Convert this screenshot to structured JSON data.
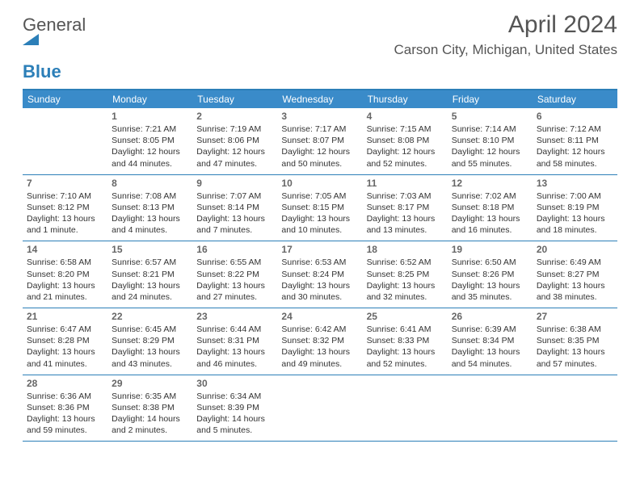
{
  "logo": {
    "general": "General",
    "blue": "Blue"
  },
  "title": "April 2024",
  "location": "Carson City, Michigan, United States",
  "colors": {
    "header_bg": "#3a8bc9",
    "rule": "#2c7fb8",
    "text": "#333333",
    "muted": "#555555"
  },
  "day_names": [
    "Sunday",
    "Monday",
    "Tuesday",
    "Wednesday",
    "Thursday",
    "Friday",
    "Saturday"
  ],
  "weeks": [
    [
      null,
      {
        "n": "1",
        "sunrise": "7:21 AM",
        "sunset": "8:05 PM",
        "daylight": "12 hours and 44 minutes."
      },
      {
        "n": "2",
        "sunrise": "7:19 AM",
        "sunset": "8:06 PM",
        "daylight": "12 hours and 47 minutes."
      },
      {
        "n": "3",
        "sunrise": "7:17 AM",
        "sunset": "8:07 PM",
        "daylight": "12 hours and 50 minutes."
      },
      {
        "n": "4",
        "sunrise": "7:15 AM",
        "sunset": "8:08 PM",
        "daylight": "12 hours and 52 minutes."
      },
      {
        "n": "5",
        "sunrise": "7:14 AM",
        "sunset": "8:10 PM",
        "daylight": "12 hours and 55 minutes."
      },
      {
        "n": "6",
        "sunrise": "7:12 AM",
        "sunset": "8:11 PM",
        "daylight": "12 hours and 58 minutes."
      }
    ],
    [
      {
        "n": "7",
        "sunrise": "7:10 AM",
        "sunset": "8:12 PM",
        "daylight": "13 hours and 1 minute."
      },
      {
        "n": "8",
        "sunrise": "7:08 AM",
        "sunset": "8:13 PM",
        "daylight": "13 hours and 4 minutes."
      },
      {
        "n": "9",
        "sunrise": "7:07 AM",
        "sunset": "8:14 PM",
        "daylight": "13 hours and 7 minutes."
      },
      {
        "n": "10",
        "sunrise": "7:05 AM",
        "sunset": "8:15 PM",
        "daylight": "13 hours and 10 minutes."
      },
      {
        "n": "11",
        "sunrise": "7:03 AM",
        "sunset": "8:17 PM",
        "daylight": "13 hours and 13 minutes."
      },
      {
        "n": "12",
        "sunrise": "7:02 AM",
        "sunset": "8:18 PM",
        "daylight": "13 hours and 16 minutes."
      },
      {
        "n": "13",
        "sunrise": "7:00 AM",
        "sunset": "8:19 PM",
        "daylight": "13 hours and 18 minutes."
      }
    ],
    [
      {
        "n": "14",
        "sunrise": "6:58 AM",
        "sunset": "8:20 PM",
        "daylight": "13 hours and 21 minutes."
      },
      {
        "n": "15",
        "sunrise": "6:57 AM",
        "sunset": "8:21 PM",
        "daylight": "13 hours and 24 minutes."
      },
      {
        "n": "16",
        "sunrise": "6:55 AM",
        "sunset": "8:22 PM",
        "daylight": "13 hours and 27 minutes."
      },
      {
        "n": "17",
        "sunrise": "6:53 AM",
        "sunset": "8:24 PM",
        "daylight": "13 hours and 30 minutes."
      },
      {
        "n": "18",
        "sunrise": "6:52 AM",
        "sunset": "8:25 PM",
        "daylight": "13 hours and 32 minutes."
      },
      {
        "n": "19",
        "sunrise": "6:50 AM",
        "sunset": "8:26 PM",
        "daylight": "13 hours and 35 minutes."
      },
      {
        "n": "20",
        "sunrise": "6:49 AM",
        "sunset": "8:27 PM",
        "daylight": "13 hours and 38 minutes."
      }
    ],
    [
      {
        "n": "21",
        "sunrise": "6:47 AM",
        "sunset": "8:28 PM",
        "daylight": "13 hours and 41 minutes."
      },
      {
        "n": "22",
        "sunrise": "6:45 AM",
        "sunset": "8:29 PM",
        "daylight": "13 hours and 43 minutes."
      },
      {
        "n": "23",
        "sunrise": "6:44 AM",
        "sunset": "8:31 PM",
        "daylight": "13 hours and 46 minutes."
      },
      {
        "n": "24",
        "sunrise": "6:42 AM",
        "sunset": "8:32 PM",
        "daylight": "13 hours and 49 minutes."
      },
      {
        "n": "25",
        "sunrise": "6:41 AM",
        "sunset": "8:33 PM",
        "daylight": "13 hours and 52 minutes."
      },
      {
        "n": "26",
        "sunrise": "6:39 AM",
        "sunset": "8:34 PM",
        "daylight": "13 hours and 54 minutes."
      },
      {
        "n": "27",
        "sunrise": "6:38 AM",
        "sunset": "8:35 PM",
        "daylight": "13 hours and 57 minutes."
      }
    ],
    [
      {
        "n": "28",
        "sunrise": "6:36 AM",
        "sunset": "8:36 PM",
        "daylight": "13 hours and 59 minutes."
      },
      {
        "n": "29",
        "sunrise": "6:35 AM",
        "sunset": "8:38 PM",
        "daylight": "14 hours and 2 minutes."
      },
      {
        "n": "30",
        "sunrise": "6:34 AM",
        "sunset": "8:39 PM",
        "daylight": "14 hours and 5 minutes."
      },
      null,
      null,
      null,
      null
    ]
  ],
  "labels": {
    "sunrise": "Sunrise:",
    "sunset": "Sunset:",
    "daylight": "Daylight:"
  }
}
